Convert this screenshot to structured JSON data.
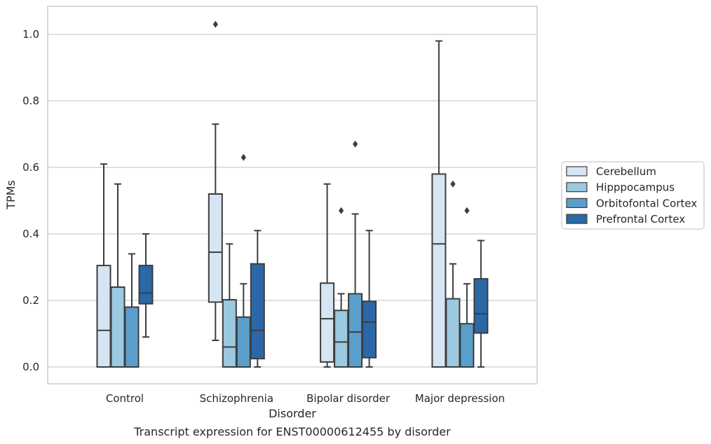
{
  "chart_data": {
    "type": "box",
    "caption": "Transcript expression for ENST00000612455 by disorder",
    "xlabel": "Disorder",
    "ylabel": "TPMs",
    "ylim": [
      -0.05,
      1.08
    ],
    "yticks": [
      0.0,
      0.2,
      0.4,
      0.6,
      0.8,
      1.0
    ],
    "ytick_labels": [
      "0.0",
      "0.2",
      "0.4",
      "0.6",
      "0.8",
      "1.0"
    ],
    "grid": true,
    "legend_position": "right",
    "categories": [
      "Control",
      "Schizophrenia",
      "Bipolar disorder",
      "Major depression"
    ],
    "series": [
      {
        "name": "Cerebellum",
        "color": "#d6e5f4",
        "boxes": [
          {
            "whislo": 0.0,
            "q1": 0.0,
            "med": 0.11,
            "q3": 0.305,
            "whishi": 0.61,
            "fliers": []
          },
          {
            "whislo": 0.08,
            "q1": 0.195,
            "med": 0.345,
            "q3": 0.52,
            "whishi": 0.73,
            "fliers": [
              1.03
            ]
          },
          {
            "whislo": 0.0,
            "q1": 0.015,
            "med": 0.145,
            "q3": 0.252,
            "whishi": 0.55,
            "fliers": []
          },
          {
            "whislo": 0.0,
            "q1": 0.0,
            "med": 0.37,
            "q3": 0.58,
            "whishi": 0.98,
            "fliers": []
          }
        ]
      },
      {
        "name": "Hipppocampus",
        "color": "#9cc8e0",
        "boxes": [
          {
            "whislo": 0.0,
            "q1": 0.0,
            "med": 0.0,
            "q3": 0.24,
            "whishi": 0.55,
            "fliers": []
          },
          {
            "whislo": 0.0,
            "q1": 0.0,
            "med": 0.06,
            "q3": 0.202,
            "whishi": 0.37,
            "fliers": []
          },
          {
            "whislo": 0.0,
            "q1": 0.0,
            "med": 0.075,
            "q3": 0.17,
            "whishi": 0.22,
            "fliers": [
              0.47
            ]
          },
          {
            "whislo": 0.0,
            "q1": 0.0,
            "med": 0.0,
            "q3": 0.205,
            "whishi": 0.31,
            "fliers": [
              0.55
            ]
          }
        ]
      },
      {
        "name": "Orbitofontal Cortex",
        "color": "#5a9fcb",
        "boxes": [
          {
            "whislo": 0.0,
            "q1": 0.0,
            "med": 0.0,
            "q3": 0.18,
            "whishi": 0.34,
            "fliers": []
          },
          {
            "whislo": 0.0,
            "q1": 0.0,
            "med": 0.0,
            "q3": 0.15,
            "whishi": 0.25,
            "fliers": [
              0.63
            ]
          },
          {
            "whislo": 0.0,
            "q1": 0.0,
            "med": 0.105,
            "q3": 0.22,
            "whishi": 0.46,
            "fliers": [
              0.67
            ]
          },
          {
            "whislo": 0.0,
            "q1": 0.0,
            "med": 0.0,
            "q3": 0.13,
            "whishi": 0.25,
            "fliers": [
              0.47
            ]
          }
        ]
      },
      {
        "name": "Prefrontal Cortex",
        "color": "#2a68a8",
        "boxes": [
          {
            "whislo": 0.09,
            "q1": 0.19,
            "med": 0.222,
            "q3": 0.305,
            "whishi": 0.4,
            "fliers": []
          },
          {
            "whislo": 0.0,
            "q1": 0.025,
            "med": 0.11,
            "q3": 0.31,
            "whishi": 0.41,
            "fliers": []
          },
          {
            "whislo": 0.0,
            "q1": 0.028,
            "med": 0.135,
            "q3": 0.197,
            "whishi": 0.41,
            "fliers": []
          },
          {
            "whislo": 0.0,
            "q1": 0.102,
            "med": 0.16,
            "q3": 0.265,
            "whishi": 0.38,
            "fliers": []
          }
        ]
      }
    ]
  }
}
